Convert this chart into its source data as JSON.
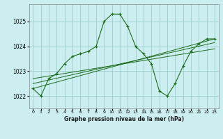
{
  "title": "Graphe pression niveau de la mer (hPa)",
  "background_color": "#cceef0",
  "grid_color": "#99cccc",
  "line_color": "#1a6b1a",
  "x_ticks": [
    0,
    1,
    2,
    3,
    4,
    5,
    6,
    7,
    8,
    9,
    10,
    11,
    12,
    13,
    14,
    15,
    16,
    17,
    18,
    19,
    20,
    21,
    22,
    23
  ],
  "ylim": [
    1021.5,
    1025.7
  ],
  "yticks": [
    1022,
    1023,
    1024,
    1025
  ],
  "series1": {
    "x": [
      0,
      1,
      2,
      3,
      4,
      5,
      6,
      7,
      8,
      9,
      10,
      11,
      12,
      13,
      14,
      15,
      16,
      17,
      18,
      19,
      20,
      21,
      22,
      23
    ],
    "y": [
      1022.3,
      1022.0,
      1022.7,
      1022.9,
      1023.3,
      1023.6,
      1023.7,
      1023.8,
      1024.0,
      1025.0,
      1025.3,
      1025.3,
      1024.8,
      1024.0,
      1023.7,
      1023.3,
      1022.2,
      1022.0,
      1022.5,
      1023.2,
      1023.8,
      1024.1,
      1024.3,
      1024.3
    ]
  },
  "series2": {
    "x": [
      0,
      23
    ],
    "y": [
      1022.3,
      1024.3
    ]
  },
  "series3": {
    "x": [
      0,
      23
    ],
    "y": [
      1022.5,
      1024.15
    ]
  },
  "series4": {
    "x": [
      0,
      23
    ],
    "y": [
      1022.7,
      1023.9
    ]
  }
}
